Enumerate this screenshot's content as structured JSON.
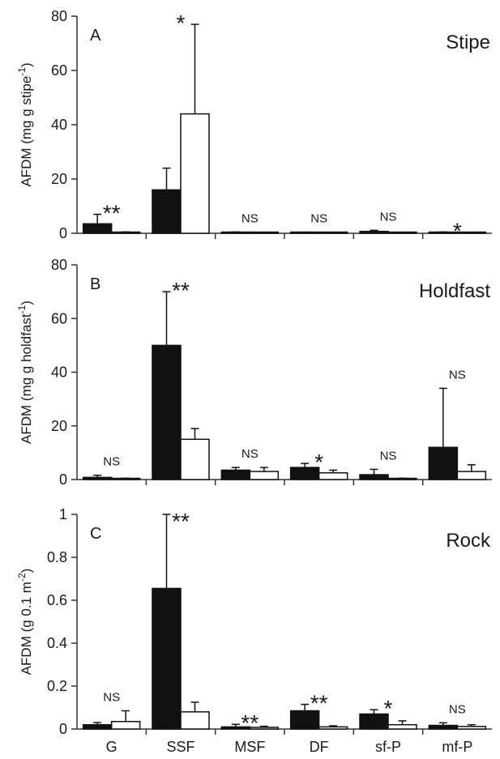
{
  "chart_data": [
    {
      "type": "bar",
      "panel_letter": "A",
      "title": "Stipe",
      "ylabel": "AFDM (mg g stipe",
      "ylabel_superscript": "-1",
      "ylabel_tail": ")",
      "ylim": [
        0,
        80
      ],
      "yticks": [
        0,
        20,
        40,
        60,
        80
      ],
      "ytick_labels": [
        "0",
        "20",
        "40",
        "60",
        "80"
      ],
      "categories": [
        "G",
        "SSF",
        "MSF",
        "DF",
        "sf-P",
        "mf-P"
      ],
      "series": [
        {
          "fill": "black",
          "values": [
            3.5,
            16,
            0.3,
            0.2,
            0.7,
            0.3
          ],
          "errors": [
            3.5,
            8,
            0.2,
            0.2,
            0.4,
            0.2
          ]
        },
        {
          "fill": "white",
          "values": [
            0.3,
            44,
            0.2,
            0.1,
            0.2,
            0.2
          ],
          "errors": [
            0.2,
            33,
            0.1,
            0.1,
            0.1,
            0.1
          ]
        }
      ],
      "significance": [
        "**",
        "*",
        "NS",
        "NS",
        "NS",
        "*"
      ]
    },
    {
      "type": "bar",
      "panel_letter": "B",
      "title": "Holdfast",
      "ylabel": "AFDM (mg g holdfast",
      "ylabel_superscript": "-1",
      "ylabel_tail": ")",
      "ylim": [
        0,
        80
      ],
      "yticks": [
        0,
        20,
        40,
        60,
        80
      ],
      "ytick_labels": [
        "0",
        "20",
        "40",
        "60",
        "80"
      ],
      "categories": [
        "G",
        "SSF",
        "MSF",
        "DF",
        "sf-P",
        "mf-P"
      ],
      "series": [
        {
          "fill": "black",
          "values": [
            0.8,
            50,
            3.5,
            4.5,
            1.8,
            12
          ],
          "errors": [
            0.8,
            20,
            1,
            1.5,
            2,
            22
          ]
        },
        {
          "fill": "white",
          "values": [
            0.3,
            15,
            3,
            2.5,
            0.3,
            3
          ],
          "errors": [
            0.2,
            4,
            1.5,
            1,
            0.2,
            2.5
          ]
        }
      ],
      "significance": [
        "NS",
        "**",
        "NS",
        "*",
        "NS",
        "NS"
      ]
    },
    {
      "type": "bar",
      "panel_letter": "C",
      "title": "Rock",
      "ylabel": "AFDM (g 0.1 m",
      "ylabel_superscript": "-2",
      "ylabel_tail": ")",
      "ylim": [
        0,
        1
      ],
      "yticks": [
        0,
        0.2,
        0.4,
        0.6,
        0.8,
        1
      ],
      "ytick_labels": [
        "0",
        "0.2",
        "0.4",
        "0.6",
        "0.8",
        "1"
      ],
      "categories": [
        "G",
        "SSF",
        "MSF",
        "DF",
        "sf-P",
        "mf-P"
      ],
      "category_labels": [
        "G",
        "SSF",
        "MSF",
        "DF",
        "sf-P",
        "mf-P"
      ],
      "series": [
        {
          "fill": "black",
          "values": [
            0.02,
            0.655,
            0.01,
            0.085,
            0.07,
            0.017
          ],
          "errors": [
            0.01,
            0.345,
            0.012,
            0.03,
            0.02,
            0.012
          ]
        },
        {
          "fill": "white",
          "values": [
            0.035,
            0.08,
            0.008,
            0.01,
            0.02,
            0.012
          ],
          "errors": [
            0.05,
            0.045,
            0.005,
            0.005,
            0.018,
            0.008
          ]
        }
      ],
      "significance": [
        "NS",
        "**",
        "**",
        "**",
        "*",
        "NS"
      ]
    }
  ]
}
